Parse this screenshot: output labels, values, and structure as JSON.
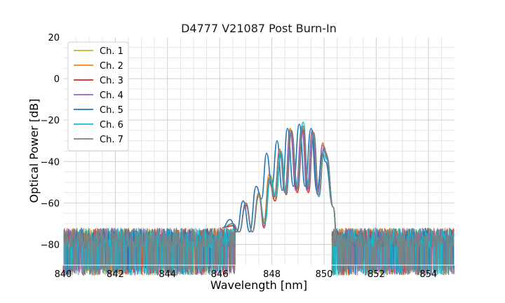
{
  "chart_data": {
    "type": "line",
    "title": "D4777 V21087 Post Burn-In",
    "xlabel": "Wavelength [nm]",
    "ylabel": "Optical Power [dB]",
    "xlim": [
      840,
      855
    ],
    "ylim": [
      -90,
      20
    ],
    "xticks": [
      840,
      842,
      844,
      846,
      848,
      850,
      852,
      854
    ],
    "yticks": [
      20,
      0,
      -20,
      -40,
      -60,
      -80
    ],
    "xtick_labels": [
      "840",
      "842",
      "844",
      "846",
      "848",
      "850",
      "852",
      "854"
    ],
    "ytick_labels": [
      "20",
      "0",
      "−20",
      "−40",
      "−60",
      "−80"
    ],
    "grid": true,
    "legend_position": "top-left",
    "noise_floor_db": -77,
    "series": [
      {
        "name": "Ch. 1",
        "color": "#bcbd22",
        "peak_wavelengths": [
          846.5,
          847.0,
          847.5,
          847.95,
          848.35,
          848.75,
          849.2,
          849.6,
          850.0
        ],
        "peak_levels": [
          -70,
          -60,
          -57,
          -47,
          -36,
          -25,
          -24,
          -26,
          -33
        ]
      },
      {
        "name": "Ch. 2",
        "color": "#ff7f0e",
        "peak_wavelengths": [
          846.5,
          847.0,
          847.5,
          847.9,
          848.3,
          848.7,
          849.15,
          849.55,
          849.95
        ],
        "peak_levels": [
          -70,
          -60,
          -55,
          -46,
          -34,
          -24,
          -23,
          -25,
          -31
        ]
      },
      {
        "name": "Ch. 3",
        "color": "#d62728",
        "peak_wavelengths": [
          846.5,
          847.0,
          847.5,
          847.9,
          848.35,
          848.75,
          849.2,
          849.6,
          850.0
        ],
        "peak_levels": [
          -71,
          -61,
          -56,
          -50,
          -37,
          -26,
          -25,
          -27,
          -34
        ]
      },
      {
        "name": "Ch. 4",
        "color": "#9467bd",
        "peak_wavelengths": [
          846.5,
          847.0,
          847.5,
          847.9,
          848.3,
          848.7,
          849.15,
          849.55,
          849.95
        ],
        "peak_levels": [
          -70,
          -60,
          -56,
          -49,
          -35,
          -25,
          -24,
          -26,
          -32
        ]
      },
      {
        "name": "Ch. 5",
        "color": "#1f77b4",
        "peak_wavelengths": [
          846.4,
          846.9,
          847.4,
          847.8,
          848.2,
          848.6,
          849.05,
          849.5,
          849.95
        ],
        "peak_levels": [
          -68,
          -59,
          -52,
          -36,
          -30,
          -24,
          -22,
          -24,
          -36
        ]
      },
      {
        "name": "Ch. 6",
        "color": "#17becf",
        "peak_wavelengths": [
          846.5,
          847.0,
          847.5,
          847.95,
          848.35,
          848.75,
          849.2,
          849.6,
          850.0
        ],
        "peak_levels": [
          -70,
          -60,
          -56,
          -48,
          -35,
          -25,
          -21,
          -27,
          -35
        ]
      },
      {
        "name": "Ch. 7",
        "color": "#7f7f7f",
        "peak_wavelengths": [
          846.5,
          847.0,
          847.5,
          847.9,
          848.3,
          848.75,
          849.2,
          849.6,
          850.0
        ],
        "peak_levels": [
          -70,
          -60,
          -56,
          -48,
          -35,
          -25,
          -23,
          -26,
          -33
        ]
      }
    ]
  }
}
